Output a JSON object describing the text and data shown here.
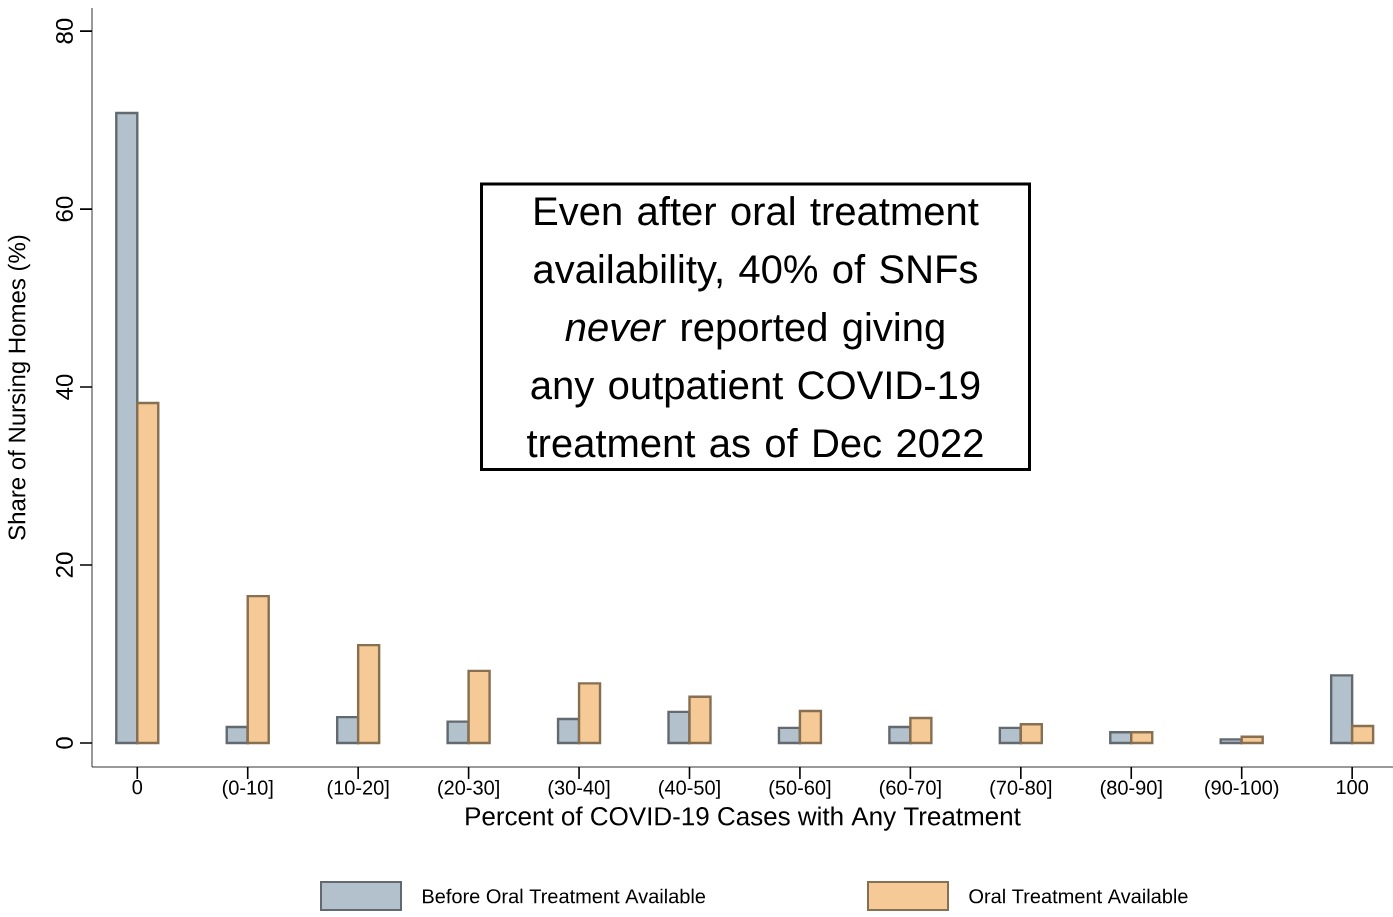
{
  "chart_data": {
    "type": "bar",
    "xlabel": "Percent of COVID-19 Cases with Any Treatment",
    "ylabel": "Share of Nursing Homes (%)",
    "categories": [
      "0",
      "(0-10]",
      "(10-20]",
      "(20-30]",
      "(30-40]",
      "(40-50]",
      "(50-60]",
      "(60-70]",
      "(70-80]",
      "(80-90]",
      "(90-100)",
      "100"
    ],
    "series": [
      {
        "name": "Before Oral Treatment Available",
        "color": "#b3c1cc",
        "values": [
          70.8,
          1.8,
          2.9,
          2.4,
          2.7,
          3.5,
          1.7,
          1.8,
          1.7,
          1.2,
          0.4,
          7.6
        ]
      },
      {
        "name": "Oral Treatment Available",
        "color": "#f5ca96",
        "values": [
          38.2,
          16.5,
          11.0,
          8.1,
          6.7,
          5.2,
          3.6,
          2.8,
          2.1,
          1.2,
          0.7,
          1.9
        ]
      }
    ],
    "ylim": [
      -2.7,
      82.6
    ],
    "yticks": [
      0,
      20,
      40,
      60,
      80
    ],
    "grid": false,
    "legend": "bottom",
    "annotations": [
      "Even after oral treatment availability, 40% of SNFs *never* reported giving any outpatient COVID-19 treatment as of Dec 2022"
    ]
  }
}
